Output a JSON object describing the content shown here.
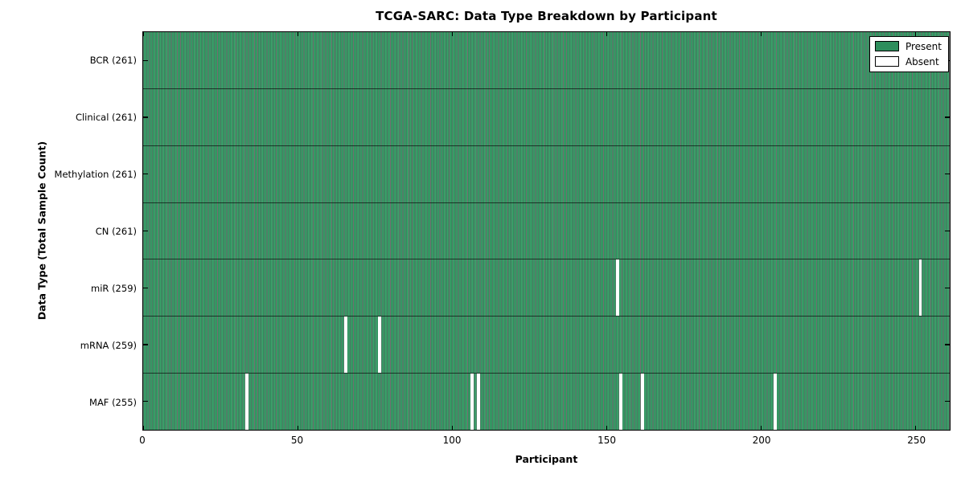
{
  "title": "TCGA-SARC: Data Type Breakdown by Participant",
  "legend": {
    "present_label": "Present",
    "absent_label": "Absent"
  },
  "colors": {
    "present_fill": "#2e8e5c",
    "present_highlight": "#3fa06b",
    "absent_fill": "#ffffff",
    "edge": "#000000"
  },
  "chart_data": {
    "type": "heatmap",
    "title": "TCGA-SARC: Data Type Breakdown by Participant",
    "xlabel": "Participant",
    "ylabel": "Data Type (Total Sample Count)",
    "n_participants": 261,
    "xlim": [
      0,
      261
    ],
    "x_ticks": [
      0,
      50,
      100,
      150,
      200,
      250
    ],
    "grid": false,
    "legend_entries": [
      "Present",
      "Absent"
    ],
    "legend_position": "upper right",
    "rows": [
      {
        "data_type": "BCR",
        "label": "BCR (261)",
        "present_count": 261,
        "absent_participants": []
      },
      {
        "data_type": "Clinical",
        "label": "Clinical (261)",
        "present_count": 261,
        "absent_participants": []
      },
      {
        "data_type": "Methylation",
        "label": "Methylation (261)",
        "present_count": 261,
        "absent_participants": []
      },
      {
        "data_type": "CN",
        "label": "CN (261)",
        "present_count": 261,
        "absent_participants": []
      },
      {
        "data_type": "miR",
        "label": "miR (259)",
        "present_count": 259,
        "absent_participants": [
          153,
          251
        ]
      },
      {
        "data_type": "mRNA",
        "label": "mRNA (259)",
        "present_count": 259,
        "absent_participants": [
          65,
          76
        ]
      },
      {
        "data_type": "MAF",
        "label": "MAF (255)",
        "present_count": 255,
        "absent_participants": [
          33,
          106,
          108,
          154,
          161,
          204
        ]
      }
    ]
  }
}
